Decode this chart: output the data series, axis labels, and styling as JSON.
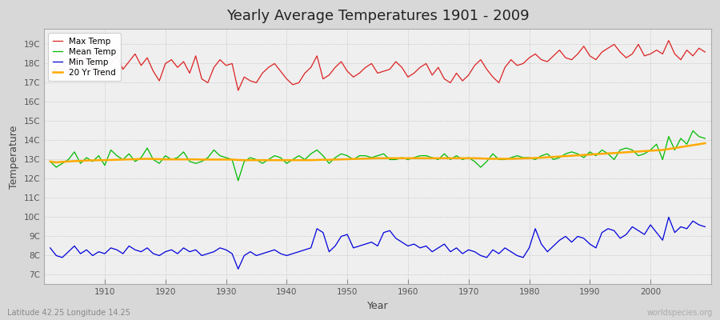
{
  "title": "Yearly Average Temperatures 1901 - 2009",
  "xlabel": "Year",
  "ylabel": "Temperature",
  "start_year": 1901,
  "end_year": 2009,
  "yticks": [
    "7C",
    "8C",
    "9C",
    "10C",
    "11C",
    "12C",
    "13C",
    "14C",
    "15C",
    "16C",
    "17C",
    "18C",
    "19C"
  ],
  "yvalues": [
    7,
    8,
    9,
    10,
    11,
    12,
    13,
    14,
    15,
    16,
    17,
    18,
    19
  ],
  "ylim": [
    6.5,
    19.8
  ],
  "xlim": [
    1900,
    2010
  ],
  "max_temp_color": "#dd2222",
  "mean_temp_color": "#00bb00",
  "min_temp_color": "#0000dd",
  "trend_color": "#ffaa00",
  "bg_color": "#d8d8d8",
  "plot_bg_color": "#efefef",
  "grid_color": "#bbbbbb",
  "legend_labels": [
    "Max Temp",
    "Mean Temp",
    "Min Temp",
    "20 Yr Trend"
  ],
  "watermark_left": "Latitude 42.25 Longitude 14.25",
  "watermark_right": "worldspecies.org",
  "max_temps": [
    17.3,
    17.8,
    18.1,
    17.5,
    18.3,
    17.9,
    18.2,
    17.6,
    17.2,
    17.8,
    18.0,
    18.4,
    17.7,
    18.1,
    18.5,
    17.9,
    18.3,
    17.6,
    17.1,
    18.0,
    18.2,
    17.8,
    18.1,
    17.5,
    18.4,
    17.2,
    17.0,
    17.8,
    18.2,
    17.9,
    18.0,
    16.6,
    17.3,
    17.1,
    17.0,
    17.5,
    17.8,
    18.0,
    17.6,
    17.2,
    16.9,
    17.0,
    17.5,
    17.8,
    18.4,
    17.2,
    17.4,
    17.8,
    18.1,
    17.6,
    17.3,
    17.5,
    17.8,
    18.0,
    17.5,
    17.6,
    17.7,
    18.1,
    17.8,
    17.3,
    17.5,
    17.8,
    18.0,
    17.4,
    17.8,
    17.2,
    17.0,
    17.5,
    17.1,
    17.4,
    17.9,
    18.2,
    17.7,
    17.3,
    17.0,
    17.8,
    18.2,
    17.9,
    18.0,
    18.3,
    18.5,
    18.2,
    18.1,
    18.4,
    18.7,
    18.3,
    18.2,
    18.5,
    18.9,
    18.4,
    18.2,
    18.6,
    18.8,
    19.0,
    18.6,
    18.3,
    18.5,
    19.0,
    18.4,
    18.5,
    18.7,
    18.5,
    19.2,
    18.5,
    18.2,
    18.7,
    18.4,
    18.8,
    18.6
  ],
  "mean_temps": [
    12.9,
    12.6,
    12.8,
    13.0,
    13.4,
    12.8,
    13.1,
    12.9,
    13.2,
    12.7,
    13.5,
    13.2,
    13.0,
    13.3,
    12.9,
    13.1,
    13.6,
    13.0,
    12.8,
    13.2,
    13.0,
    13.1,
    13.4,
    12.9,
    12.8,
    12.9,
    13.1,
    13.5,
    13.2,
    13.1,
    13.0,
    11.9,
    12.9,
    13.1,
    13.0,
    12.8,
    13.0,
    13.2,
    13.1,
    12.8,
    13.0,
    13.2,
    13.0,
    13.3,
    13.5,
    13.2,
    12.8,
    13.1,
    13.3,
    13.2,
    13.0,
    13.2,
    13.2,
    13.1,
    13.2,
    13.3,
    13.0,
    13.0,
    13.1,
    13.0,
    13.1,
    13.2,
    13.2,
    13.1,
    13.0,
    13.3,
    13.0,
    13.2,
    13.0,
    13.1,
    12.9,
    12.6,
    12.9,
    13.3,
    13.0,
    13.0,
    13.1,
    13.2,
    13.1,
    13.1,
    13.0,
    13.2,
    13.3,
    13.0,
    13.1,
    13.3,
    13.4,
    13.3,
    13.1,
    13.4,
    13.2,
    13.5,
    13.3,
    13.0,
    13.5,
    13.6,
    13.5,
    13.2,
    13.3,
    13.5,
    13.8,
    13.0,
    14.2,
    13.5,
    14.1,
    13.8,
    14.5,
    14.2,
    14.1
  ],
  "min_temps": [
    8.4,
    8.0,
    7.9,
    8.2,
    8.5,
    8.1,
    8.3,
    8.0,
    8.2,
    8.1,
    8.4,
    8.3,
    8.1,
    8.5,
    8.3,
    8.2,
    8.4,
    8.1,
    8.0,
    8.2,
    8.3,
    8.1,
    8.4,
    8.2,
    8.3,
    8.0,
    8.1,
    8.2,
    8.4,
    8.3,
    8.1,
    7.3,
    8.0,
    8.2,
    8.0,
    8.1,
    8.2,
    8.3,
    8.1,
    8.0,
    8.1,
    8.2,
    8.3,
    8.4,
    9.4,
    9.2,
    8.2,
    8.5,
    9.0,
    9.1,
    8.4,
    8.5,
    8.6,
    8.7,
    8.5,
    9.2,
    9.3,
    8.9,
    8.7,
    8.5,
    8.6,
    8.4,
    8.5,
    8.2,
    8.4,
    8.6,
    8.2,
    8.4,
    8.1,
    8.3,
    8.2,
    8.0,
    7.9,
    8.3,
    8.1,
    8.4,
    8.2,
    8.0,
    7.9,
    8.4,
    9.4,
    8.6,
    8.2,
    8.5,
    8.8,
    9.0,
    8.7,
    9.0,
    8.9,
    8.6,
    8.4,
    9.2,
    9.4,
    9.3,
    8.9,
    9.1,
    9.5,
    9.3,
    9.1,
    9.6,
    9.2,
    8.8,
    10.0,
    9.2,
    9.5,
    9.4,
    9.8,
    9.6,
    9.5
  ],
  "trend": [
    12.9,
    12.85,
    12.88,
    12.9,
    12.92,
    12.93,
    12.95,
    12.96,
    12.97,
    12.97,
    12.98,
    12.99,
    13.0,
    13.01,
    13.02,
    13.03,
    13.04,
    13.03,
    13.02,
    13.01,
    13.01,
    13.01,
    13.01,
    13.01,
    13.01,
    13.0,
    13.0,
    13.0,
    13.0,
    13.0,
    13.0,
    12.98,
    12.97,
    12.97,
    12.97,
    12.97,
    12.97,
    12.97,
    12.97,
    12.97,
    12.97,
    12.97,
    12.97,
    12.97,
    12.98,
    12.99,
    12.99,
    13.0,
    13.01,
    13.02,
    13.03,
    13.04,
    13.05,
    13.06,
    13.07,
    13.07,
    13.07,
    13.07,
    13.07,
    13.07,
    13.07,
    13.07,
    13.07,
    13.07,
    13.07,
    13.07,
    13.07,
    13.07,
    13.07,
    13.07,
    13.07,
    13.06,
    13.05,
    13.04,
    13.04,
    13.04,
    13.04,
    13.05,
    13.06,
    13.07,
    13.08,
    13.1,
    13.12,
    13.14,
    13.16,
    13.18,
    13.2,
    13.22,
    13.24,
    13.26,
    13.28,
    13.3,
    13.32,
    13.34,
    13.36,
    13.38,
    13.4,
    13.42,
    13.44,
    13.46,
    13.48,
    13.5,
    13.55,
    13.6,
    13.65,
    13.7,
    13.75,
    13.8,
    13.85
  ]
}
